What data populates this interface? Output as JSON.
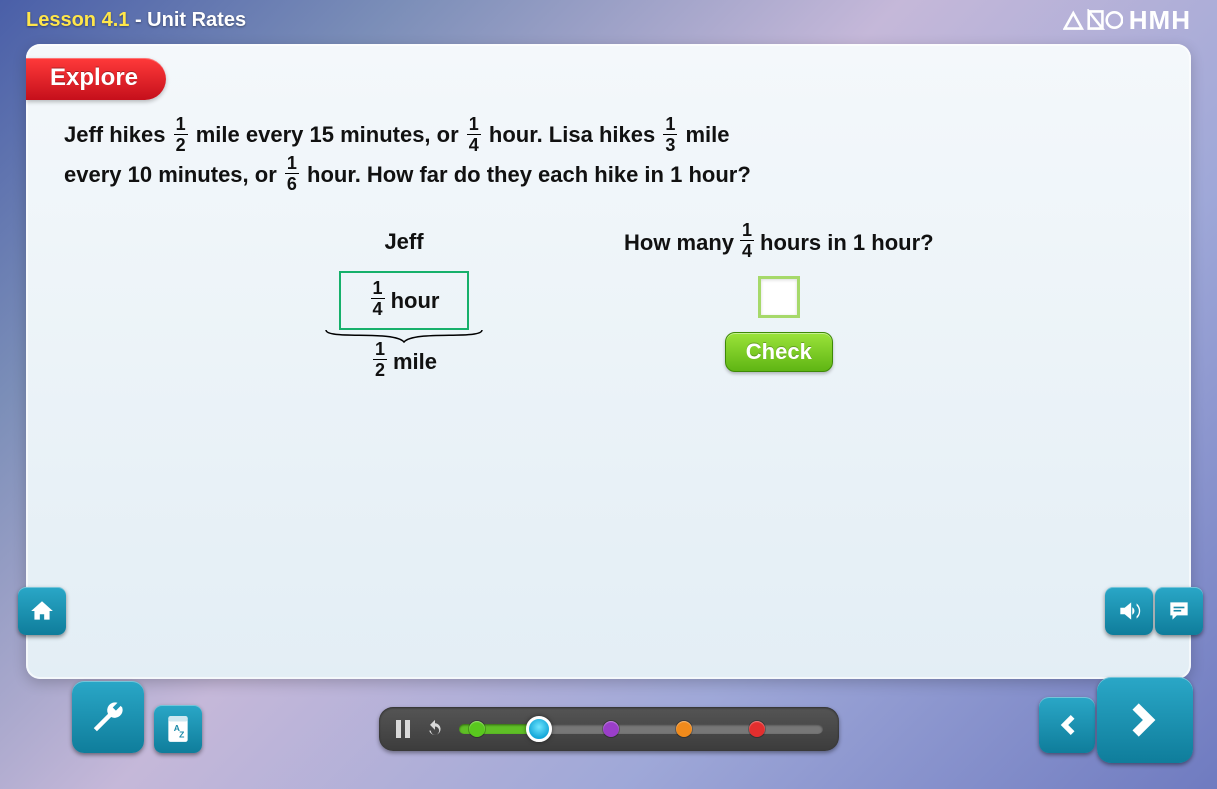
{
  "header": {
    "lesson_prefix": "Lesson 4.1",
    "lesson_separator": " - ",
    "lesson_name": "Unit Rates",
    "brand": "HMH"
  },
  "explore_label": "Explore",
  "problem": {
    "line1_a": "Jeff hikes ",
    "f1": {
      "num": "1",
      "den": "2"
    },
    "line1_b": " mile every 15 minutes, or ",
    "f2": {
      "num": "1",
      "den": "4"
    },
    "line1_c": " hour. Lisa hikes ",
    "f3": {
      "num": "1",
      "den": "3"
    },
    "line1_d": " mile",
    "line2_a": "every 10 minutes, or ",
    "f4": {
      "num": "1",
      "den": "6"
    },
    "line2_b": " hour. How far do they each hike in 1 hour?"
  },
  "jeff": {
    "name": "Jeff",
    "box_frac": {
      "num": "1",
      "den": "4"
    },
    "box_unit": " hour",
    "mile_frac": {
      "num": "1",
      "den": "2"
    },
    "mile_unit": " mile"
  },
  "question": {
    "q_a": "How many ",
    "q_frac": {
      "num": "1",
      "den": "4"
    },
    "q_b": " hours in 1 hour?",
    "answer_value": "",
    "check_label": "Check"
  },
  "progress": {
    "fill_percent": 22,
    "playhead_percent": 22,
    "markers": [
      {
        "pos": 5,
        "color": "#59c81e"
      },
      {
        "pos": 42,
        "color": "#9a3ec9"
      },
      {
        "pos": 62,
        "color": "#f08a1b"
      },
      {
        "pos": 82,
        "color": "#e22e2e"
      }
    ]
  },
  "colors": {
    "accent_yellow": "#ffe64a",
    "explore_red_top": "#ff3a3a",
    "explore_red_bot": "#c50f1b",
    "ratio_border": "#16b06b",
    "check_top": "#9be33a",
    "check_bot": "#5fb514",
    "btn_top": "#2aa7c7",
    "btn_bot": "#0f7d9b"
  }
}
